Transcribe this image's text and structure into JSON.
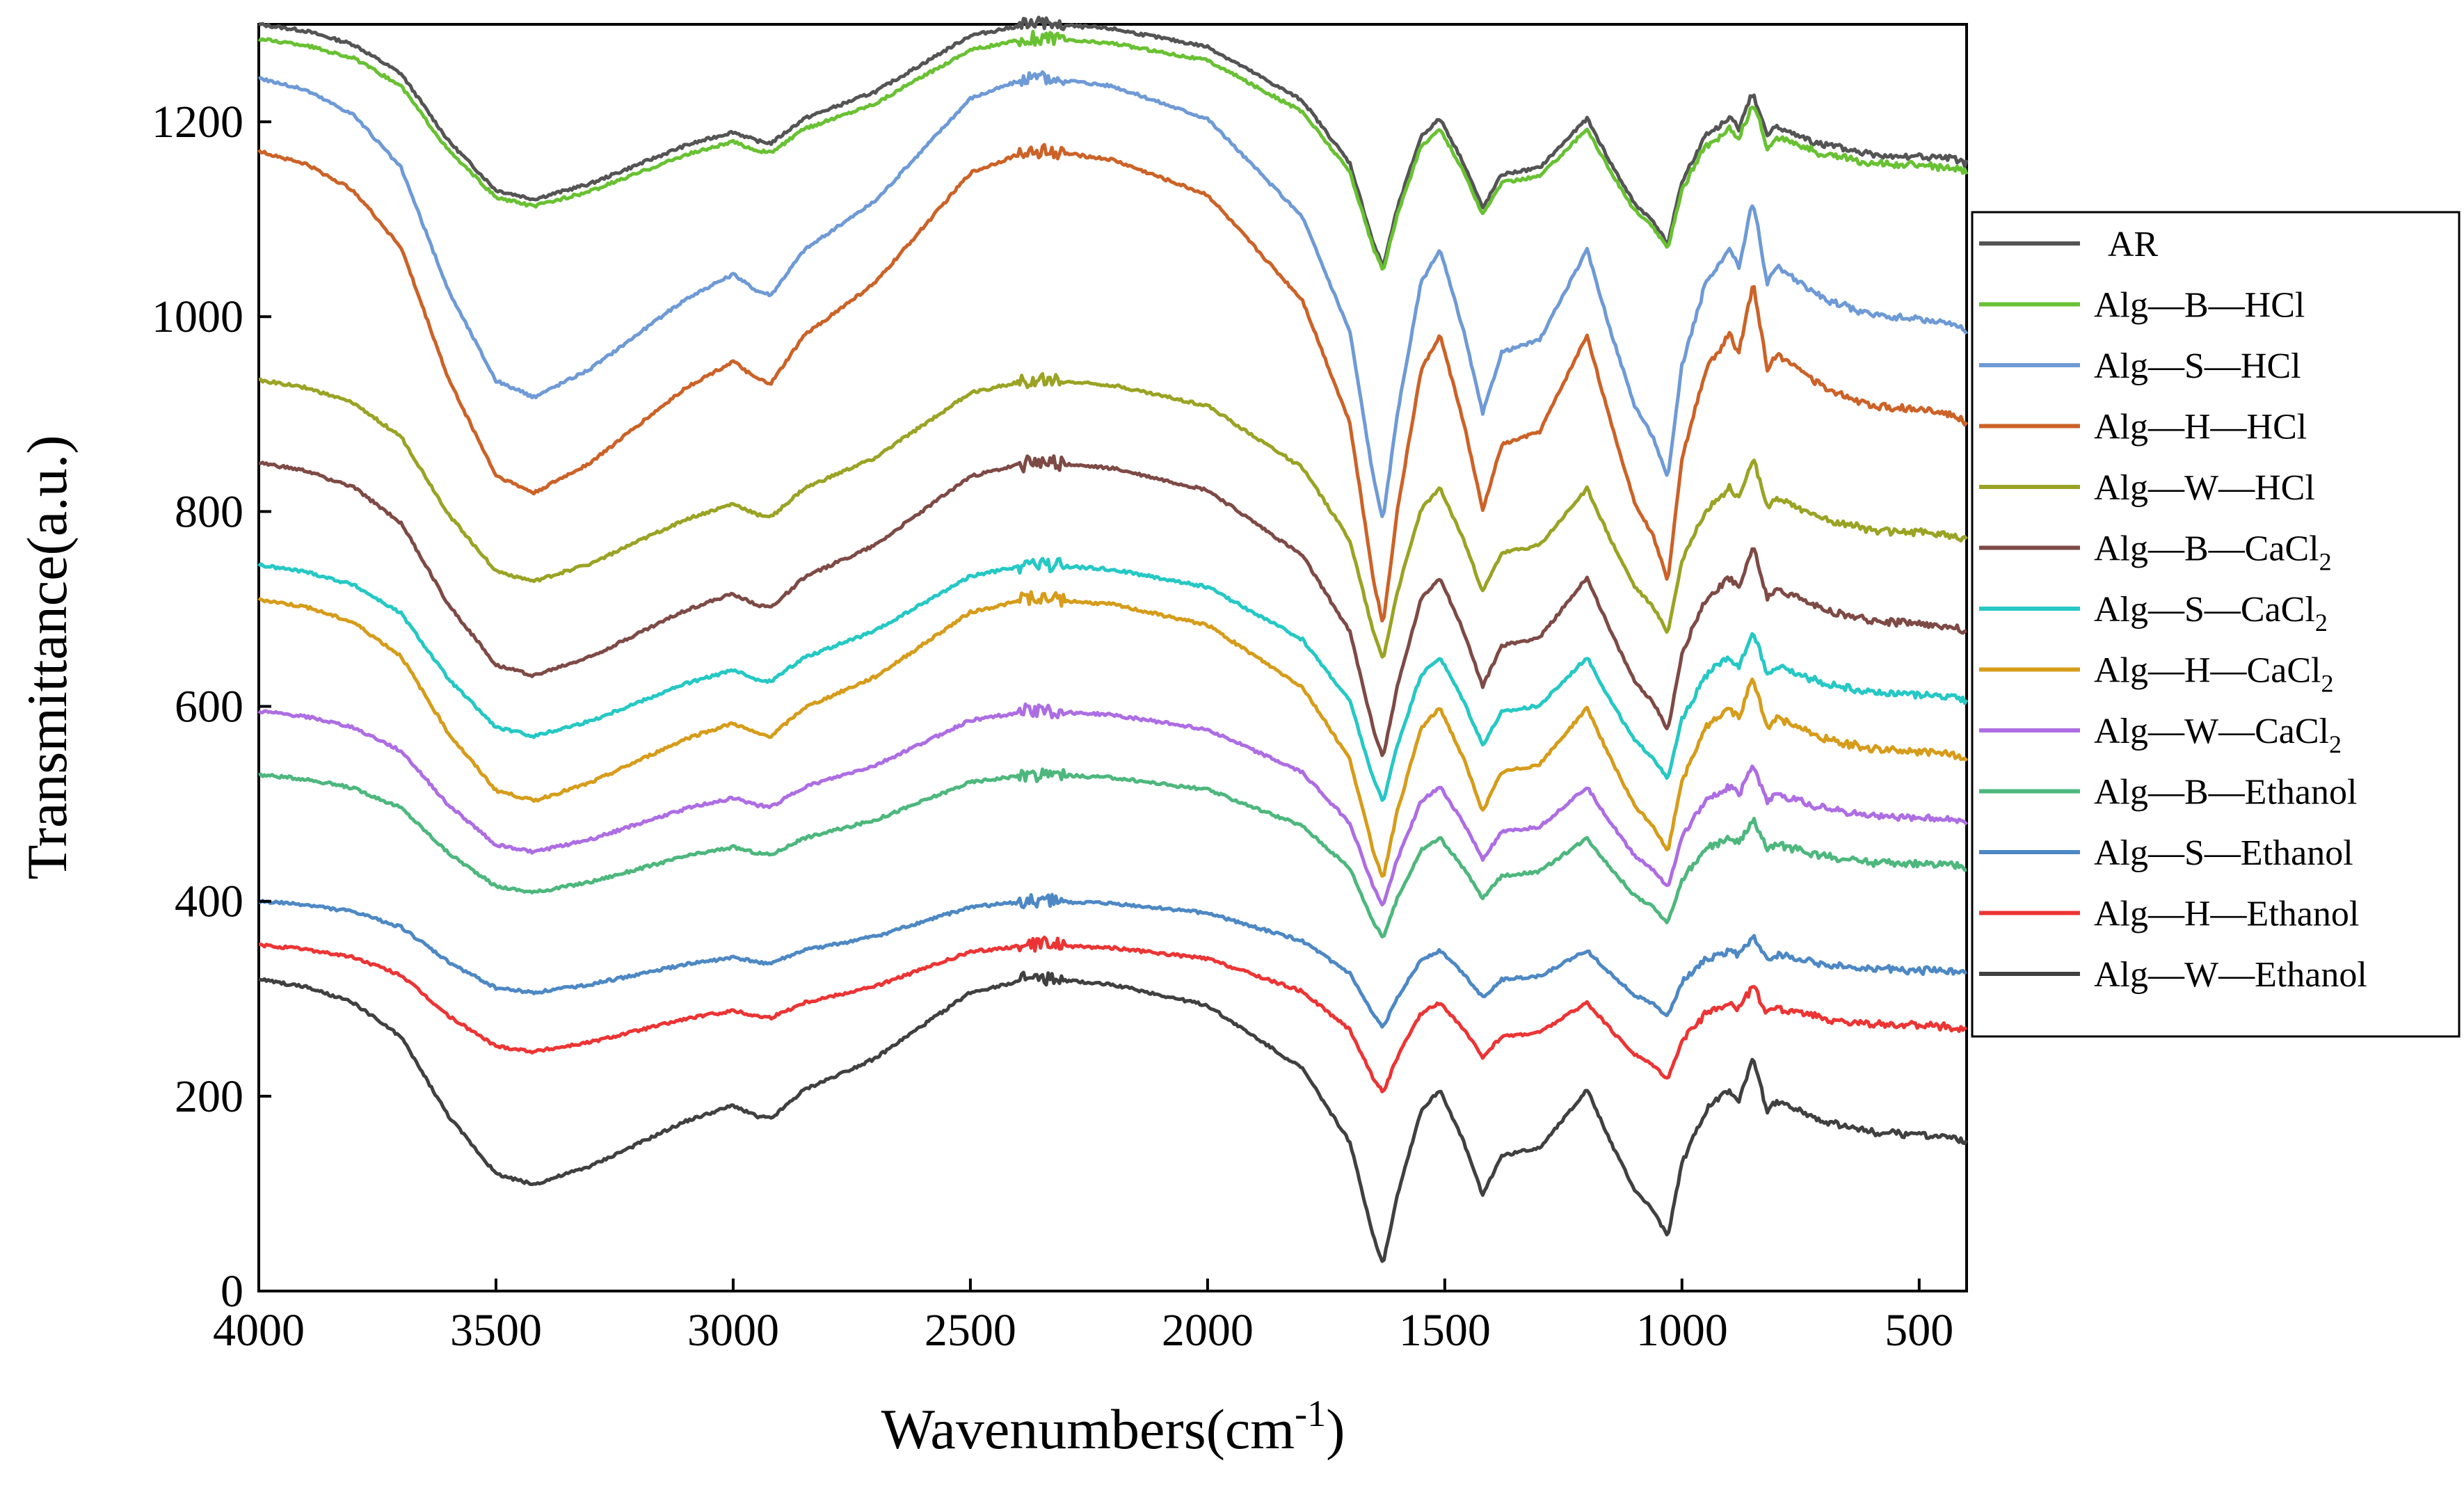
{
  "chart_data": {
    "type": "line",
    "title": "",
    "xlabel": "Wavenumbers(cm",
    "xlabel_sup": "-1",
    "xlabel_close": ")",
    "ylabel": "Transmittance(a.u.)",
    "xlim": [
      4000,
      400
    ],
    "ylim": [
      0,
      1300
    ],
    "grid": false,
    "legend_position": "right",
    "x_ticks": [
      4000,
      3500,
      3000,
      2500,
      2000,
      1500,
      1000,
      500
    ],
    "y_ticks": [
      0,
      200,
      400,
      600,
      800,
      1000,
      1200
    ],
    "base_shape": {
      "x": [
        4000,
        3900,
        3800,
        3700,
        3600,
        3500,
        3420,
        3300,
        3100,
        3000,
        2950,
        2920,
        2850,
        2700,
        2500,
        2380,
        2340,
        2200,
        2000,
        1800,
        1700,
        1650,
        1630,
        1600,
        1550,
        1510,
        1460,
        1420,
        1380,
        1300,
        1200,
        1150,
        1100,
        1060,
        1030,
        1000,
        950,
        900,
        880,
        850,
        820,
        800,
        700,
        600,
        500,
        430,
        400
      ],
      "y": [
        0.0,
        -0.03,
        -0.09,
        -0.22,
        -0.52,
        -0.74,
        -0.78,
        -0.71,
        -0.54,
        -0.48,
        -0.52,
        -0.53,
        -0.42,
        -0.3,
        -0.05,
        0.0,
        0.0,
        -0.02,
        -0.1,
        -0.34,
        -0.62,
        -0.98,
        -1.08,
        -0.82,
        -0.5,
        -0.42,
        -0.62,
        -0.82,
        -0.67,
        -0.64,
        -0.42,
        -0.62,
        -0.8,
        -0.88,
        -0.98,
        -0.7,
        -0.5,
        -0.42,
        -0.46,
        -0.3,
        -0.5,
        -0.46,
        -0.54,
        -0.58,
        -0.59,
        -0.6,
        -0.62
      ]
    },
    "series": [
      {
        "name": "AR",
        "color": "#545454",
        "offset": 1300,
        "scale": 230
      },
      {
        "name": "Alg—B—HCl",
        "color": "#68c132",
        "offset": 1285,
        "scale": 220
      },
      {
        "name": "Alg—S—HCl",
        "color": "#6e9ad6",
        "offset": 1245,
        "scale": 420
      },
      {
        "name": "Alg—H—HCl",
        "color": "#cc6227",
        "offset": 1170,
        "scale": 450
      },
      {
        "name": "Alg—W—HCl",
        "color": "#9aa324",
        "offset": 935,
        "scale": 265
      },
      {
        "name": "Alg—B—CaCl",
        "sub": "2",
        "color": "#7e4a45",
        "offset": 850,
        "scale": 280
      },
      {
        "name": "Alg—S—CaCl",
        "sub": "2",
        "color": "#25c8c4",
        "offset": 745,
        "scale": 225
      },
      {
        "name": "Alg—H—CaCl",
        "sub": "2",
        "color": "#d69c1a",
        "offset": 710,
        "scale": 265
      },
      {
        "name": "Alg—W—CaCl",
        "sub": "2",
        "color": "#ad6de3",
        "offset": 595,
        "scale": 185
      },
      {
        "name": "Alg—B—Ethanol",
        "color": "#4db77d",
        "offset": 530,
        "scale": 155
      },
      {
        "name": "Alg—S—Ethanol",
        "color": "#4d88c4",
        "offset": 400,
        "scale": 120
      },
      {
        "name": "Alg—H—Ethanol",
        "color": "#ec3434",
        "offset": 355,
        "scale": 140
      },
      {
        "name": "Alg—W—Ethanol",
        "color": "#404040",
        "offset": 320,
        "scale": 270
      }
    ]
  }
}
